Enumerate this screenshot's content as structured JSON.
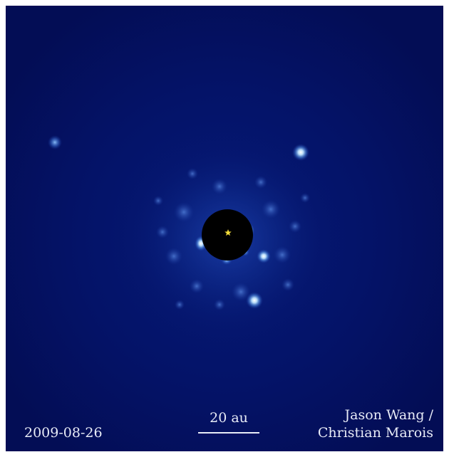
{
  "image": {
    "date": "2009-08-26",
    "scale_bar_label": "20 au",
    "credit_line_1": "Jason Wang /",
    "credit_line_2": "Christian Marois"
  },
  "colors": {
    "background": "#04105c",
    "planet": "#b9e1ff",
    "star_marker": "#f3dc3a",
    "text": "#e8ecf7"
  }
}
